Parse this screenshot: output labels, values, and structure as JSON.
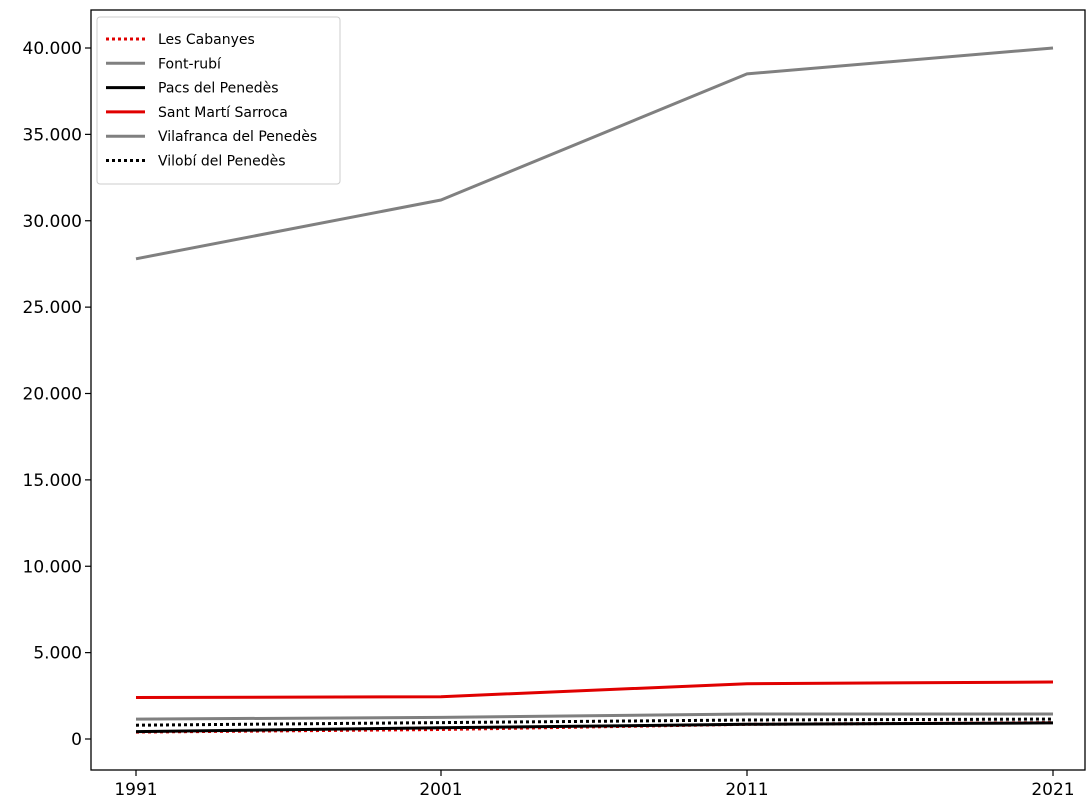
{
  "chart_data": {
    "type": "line",
    "title": "",
    "xlabel": "",
    "ylabel": "",
    "x": [
      "1991",
      "2001",
      "2011",
      "2021"
    ],
    "ylim": [
      -1700,
      41500
    ],
    "yticks": [
      0,
      5000,
      10000,
      15000,
      20000,
      25000,
      30000,
      35000,
      40000
    ],
    "ytick_labels": [
      "0",
      "5.000",
      "10.000",
      "15.000",
      "20.000",
      "25.000",
      "30.000",
      "35.000",
      "40.000"
    ],
    "grid": false,
    "legend_position": "top-left",
    "series": [
      {
        "name": "Les Cabanyes",
        "values": [
          400,
          550,
          850,
          950
        ],
        "color": "#e00000",
        "style": "dotted"
      },
      {
        "name": "Font-rubí",
        "values": [
          27800,
          31200,
          38500,
          40000
        ],
        "color": "#808080",
        "style": "solid"
      },
      {
        "name": "Pacs del Penedès",
        "values": [
          430,
          650,
          850,
          930
        ],
        "color": "#000000",
        "style": "solid"
      },
      {
        "name": "Sant Martí Sarroca",
        "values": [
          2400,
          2450,
          3200,
          3300
        ],
        "color": "#e00000",
        "style": "solid"
      },
      {
        "name": "Vilafranca del Penedès",
        "values": [
          1150,
          1250,
          1450,
          1450
        ],
        "color": "#808080",
        "style": "solid"
      },
      {
        "name": "Vilobí del Penedès",
        "values": [
          800,
          950,
          1100,
          1150
        ],
        "color": "#000000",
        "style": "dotted"
      }
    ]
  }
}
